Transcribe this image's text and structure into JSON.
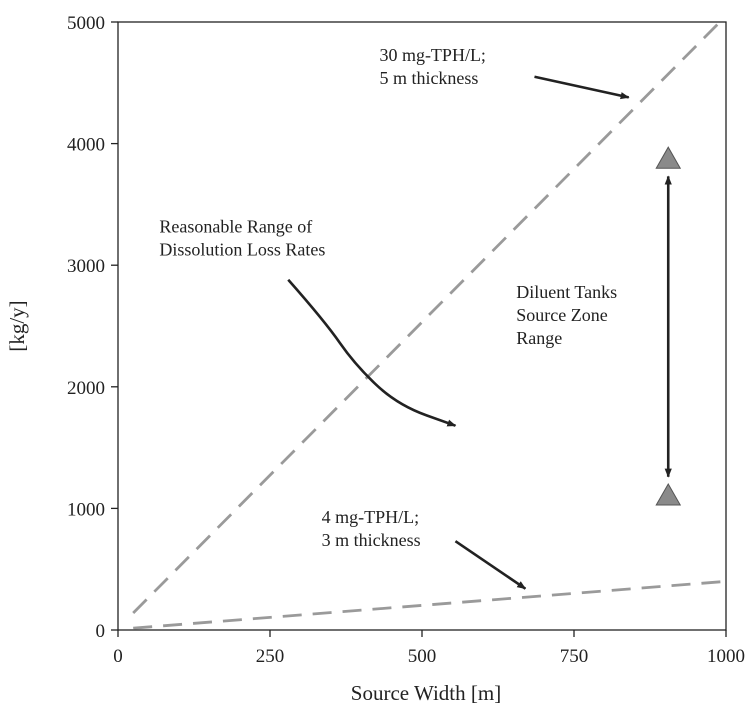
{
  "chart_data": {
    "type": "line",
    "xlabel": "Source Width [m]",
    "ylabel": "[kg/y]",
    "xlim": [
      0,
      1000
    ],
    "ylim": [
      0,
      5000
    ],
    "xticks": [
      0,
      250,
      500,
      750,
      1000
    ],
    "yticks": [
      0,
      1000,
      2000,
      3000,
      4000,
      5000
    ],
    "x_tick_labels": [
      "0",
      "250",
      "500",
      "750",
      "1000"
    ],
    "y_tick_labels": [
      "0",
      "1000",
      "2000",
      "3000",
      "4000",
      "5000"
    ],
    "grid": false,
    "legend": "none",
    "series": [
      {
        "x": [
          25,
          990
        ],
        "y": [
          140,
          5000
        ],
        "style": "dashed",
        "color": "#9a9a9a"
      },
      {
        "x": [
          25,
          1000
        ],
        "y": [
          15,
          400
        ],
        "style": "dashed",
        "color": "#9a9a9a"
      }
    ],
    "range_marker": {
      "x": 905,
      "ymin": 1110,
      "ymax": 3880,
      "arrow_ymin": 1260,
      "arrow_ymax": 3730,
      "marker_color": "#8a8a8a",
      "arrow_color": "#222222"
    },
    "annotations": [
      {
        "lines": [
          "30 mg-TPH/L;",
          "5 m thickness"
        ],
        "text_x": 430,
        "text_y": 4680,
        "arrow_path": [
          [
            685,
            4550
          ],
          [
            840,
            4380
          ]
        ]
      },
      {
        "lines": [
          "Reasonable Range of",
          "Dissolution Loss Rates"
        ],
        "text_x": 68,
        "text_y": 3270,
        "arrow_path": [
          [
            280,
            2880
          ],
          [
            340,
            2540
          ],
          [
            390,
            2180
          ],
          [
            460,
            1850
          ],
          [
            555,
            1680
          ]
        ]
      },
      {
        "lines": [
          "Diluent Tanks",
          "Source Zone",
          "Range"
        ],
        "text_x": 655,
        "text_y": 2730
      },
      {
        "lines": [
          "4 mg-TPH/L;",
          "3 m thickness"
        ],
        "text_x": 335,
        "text_y": 880,
        "arrow_path": [
          [
            555,
            730
          ],
          [
            670,
            340
          ]
        ]
      }
    ]
  }
}
